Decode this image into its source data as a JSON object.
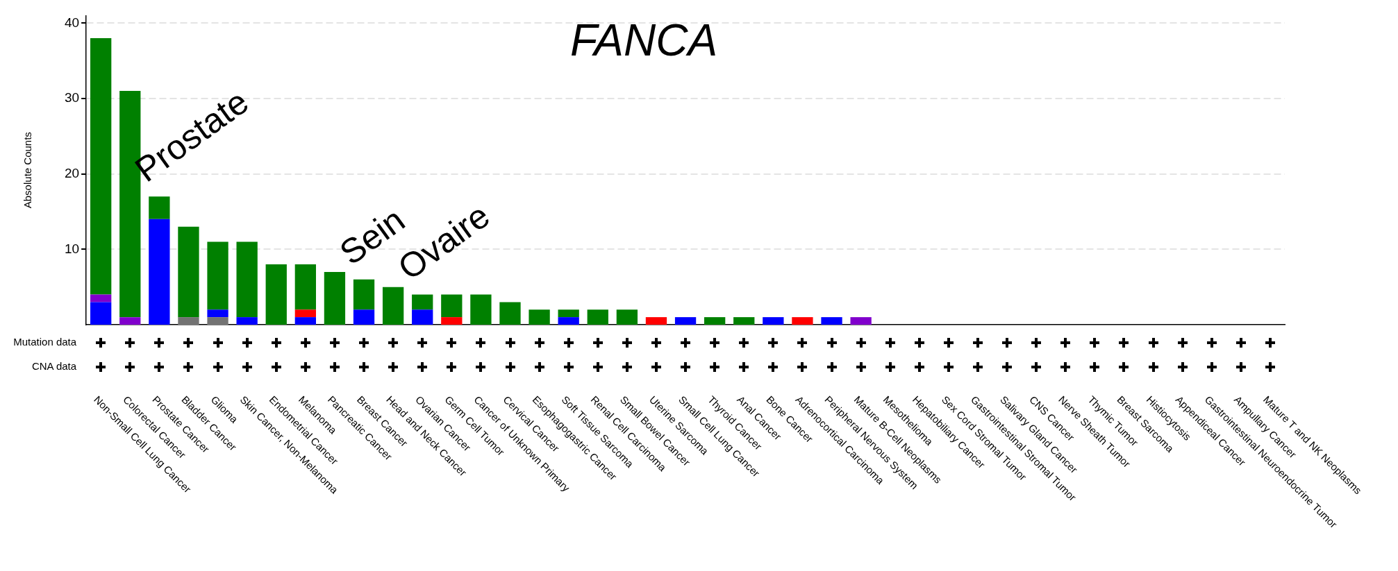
{
  "chart_data": {
    "type": "bar",
    "title": "FANCA",
    "ylabel": "Absolute Counts",
    "stacked": true,
    "categories": [
      "Non-Small Cell Lung Cancer",
      "Colorectal Cancer",
      "Prostate Cancer",
      "Bladder Cancer",
      "Glioma",
      "Skin Cancer, Non-Melanoma",
      "Endometrial Cancer",
      "Melanoma",
      "Pancreatic Cancer",
      "Breast Cancer",
      "Head and Neck Cancer",
      "Ovarian Cancer",
      "Germ Cell Tumor",
      "Cancer of Unknown Primary",
      "Cervical Cancer",
      "Esophagogastric Cancer",
      "Soft Tissue Sarcoma",
      "Renal Cell Carcinoma",
      "Small Bowel Cancer",
      "Uterine Sarcoma",
      "Small Cell Lung Cancer",
      "Thyroid Cancer",
      "Anal Cancer",
      "Bone Cancer",
      "Adrenocortical Carcinoma",
      "Peripheral Nervous System",
      "Mature B-Cell Neoplasms",
      "Mesothelioma",
      "Hepatobiliary Cancer",
      "Sex Cord Stromal Tumor",
      "Gastrointestinal Stromal Tumor",
      "Salivary Gland Cancer",
      "CNS Cancer",
      "Nerve Sheath Tumor",
      "Thymic Tumor",
      "Breast Sarcoma",
      "Histiocytosis",
      "Appendiceal Cancer",
      "Gastrointestinal Neuroendocrine Tumor",
      "Ampullary Cancer",
      "Mature T and NK Neoplasms"
    ],
    "series": [
      {
        "color": "#737373",
        "values": [
          0,
          0,
          0,
          1,
          1,
          0,
          0,
          0,
          0,
          0,
          0,
          0,
          0,
          0,
          0,
          0,
          0,
          0,
          0,
          0,
          0,
          0,
          0,
          0,
          0,
          0,
          0,
          0,
          0,
          0,
          0,
          0,
          0,
          0,
          0,
          0,
          0,
          0,
          0,
          0,
          0
        ]
      },
      {
        "color": "#0000ff",
        "values": [
          3,
          0,
          14,
          0,
          1,
          1,
          0,
          1,
          0,
          2,
          0,
          2,
          0,
          0,
          0,
          0,
          1,
          0,
          0,
          0,
          1,
          0,
          0,
          1,
          0,
          1,
          0,
          0,
          0,
          0,
          0,
          0,
          0,
          0,
          0,
          0,
          0,
          0,
          0,
          0,
          0
        ]
      },
      {
        "color": "#ff0000",
        "values": [
          0,
          0,
          0,
          0,
          0,
          0,
          0,
          1,
          0,
          0,
          0,
          0,
          1,
          0,
          0,
          0,
          0,
          0,
          0,
          1,
          0,
          0,
          0,
          0,
          1,
          0,
          0,
          0,
          0,
          0,
          0,
          0,
          0,
          0,
          0,
          0,
          0,
          0,
          0,
          0,
          0
        ]
      },
      {
        "color": "#8000cc",
        "values": [
          1,
          1,
          0,
          0,
          0,
          0,
          0,
          0,
          0,
          0,
          0,
          0,
          0,
          0,
          0,
          0,
          0,
          0,
          0,
          0,
          0,
          0,
          0,
          0,
          0,
          0,
          1,
          0,
          0,
          0,
          0,
          0,
          0,
          0,
          0,
          0,
          0,
          0,
          0,
          0,
          0
        ]
      },
      {
        "color": "#008000",
        "values": [
          34,
          30,
          3,
          12,
          9,
          10,
          8,
          6,
          7,
          4,
          5,
          2,
          3,
          4,
          3,
          2,
          1,
          2,
          2,
          0,
          0,
          1,
          1,
          0,
          0,
          0,
          0,
          0,
          0,
          0,
          0,
          0,
          0,
          0,
          0,
          0,
          0,
          0,
          0,
          0,
          0
        ]
      }
    ],
    "ylim": [
      0,
      41
    ],
    "yticks": [
      10,
      20,
      30,
      40
    ],
    "grid": "y",
    "legend": false,
    "annotations": [
      "Mutation data",
      "CNA data",
      {
        "text": "Prostate",
        "x": "Prostate Cancer",
        "y": 17
      },
      {
        "text": "Sein",
        "x": "Breast Cancer",
        "y": 6
      },
      {
        "text": "Ovaire",
        "x": "Ovarian Cancer",
        "y": 4
      }
    ]
  }
}
